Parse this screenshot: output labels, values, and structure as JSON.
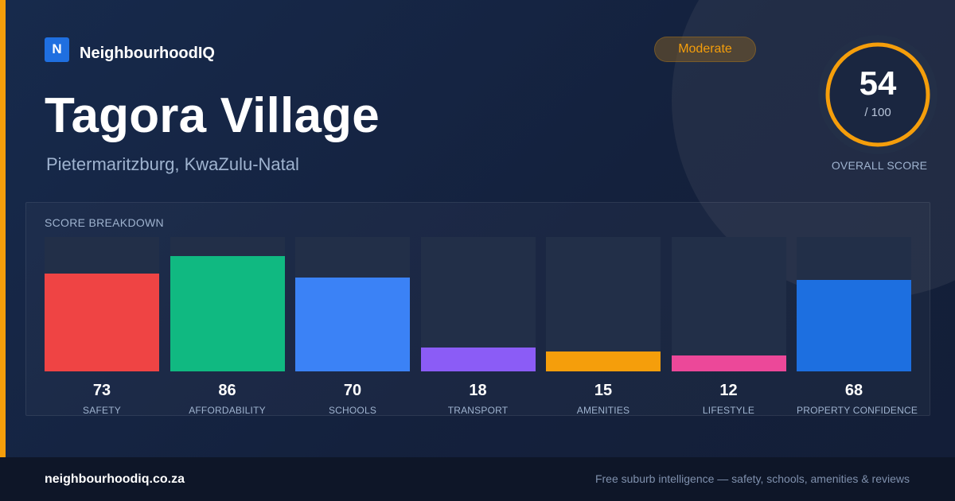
{
  "brand": {
    "logo_letter": "N",
    "name": "NeighbourhoodIQ"
  },
  "suburb": {
    "name": "Tagora Village",
    "location": "Pietermaritzburg, KwaZulu-Natal"
  },
  "rating_badge": "Moderate",
  "overall": {
    "score": 54,
    "score_text": "54",
    "out_of": "/ 100",
    "caption": "OVERALL SCORE",
    "max": 100
  },
  "breakdown_title": "SCORE BREAKDOWN",
  "chart_data": {
    "type": "bar",
    "categories": [
      "SAFETY",
      "AFFORDABILITY",
      "SCHOOLS",
      "TRANSPORT",
      "AMENITIES",
      "LIFESTYLE",
      "PROPERTY CONFIDENCE"
    ],
    "values": [
      73,
      86,
      70,
      18,
      15,
      12,
      68
    ],
    "value_labels": [
      "73",
      "86",
      "70",
      "18",
      "15",
      "12",
      "68"
    ],
    "colors": [
      "#ef4444",
      "#10b981",
      "#3b82f6",
      "#8b5cf6",
      "#f59e0b",
      "#ec4899",
      "#1d6fe0"
    ],
    "ylim": [
      0,
      100
    ],
    "title": "",
    "xlabel": "",
    "ylabel": ""
  },
  "colors": {
    "accent": "#f59e0b",
    "background": "#15223e",
    "brand_blue": "#1f6fe0"
  },
  "footer": {
    "url": "neighbourhoodiq.co.za",
    "tagline": "Free suburb intelligence — safety, schools, amenities & reviews"
  }
}
